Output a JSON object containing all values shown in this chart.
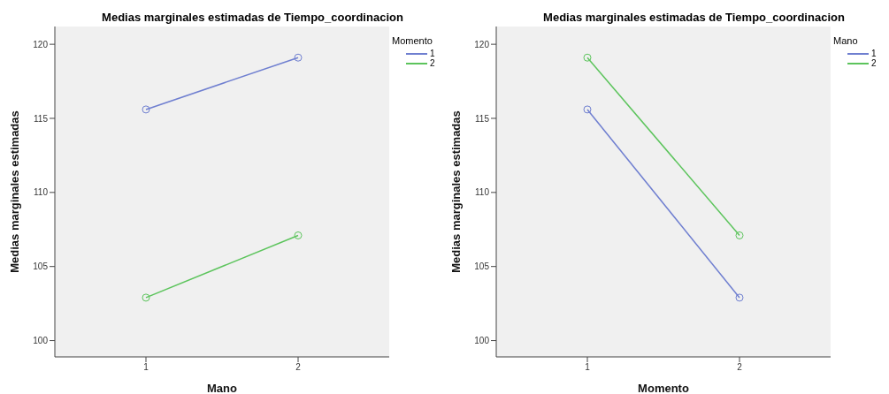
{
  "chart_data": [
    {
      "type": "line",
      "title": "Medias marginales estimadas de Tiempo_coordinacion",
      "xlabel": "Mano",
      "ylabel": "Medias marginales estimadas",
      "legend_title": "Momento",
      "categories": [
        "1",
        "2"
      ],
      "ylim": [
        98.9,
        121.2
      ],
      "yticks": [
        100,
        105,
        110,
        115,
        120
      ],
      "grid": false,
      "legend": "top right",
      "marker": "circle",
      "series": [
        {
          "name": "1",
          "color": "#6f7fd0",
          "values": [
            115.6,
            119.1
          ]
        },
        {
          "name": "2",
          "color": "#5cc45c",
          "values": [
            102.9,
            107.1
          ]
        }
      ]
    },
    {
      "type": "line",
      "title": "Medias marginales estimadas de Tiempo_coordinacion",
      "xlabel": "Momento",
      "ylabel": "Medias marginales estimadas",
      "legend_title": "Mano",
      "categories": [
        "1",
        "2"
      ],
      "ylim": [
        98.9,
        121.2
      ],
      "yticks": [
        100,
        105,
        110,
        115,
        120
      ],
      "grid": false,
      "legend": "top right",
      "marker": "circle",
      "series": [
        {
          "name": "1",
          "color": "#6f7fd0",
          "values": [
            115.6,
            102.9
          ]
        },
        {
          "name": "2",
          "color": "#5cc45c",
          "values": [
            119.1,
            107.1
          ]
        }
      ]
    }
  ]
}
